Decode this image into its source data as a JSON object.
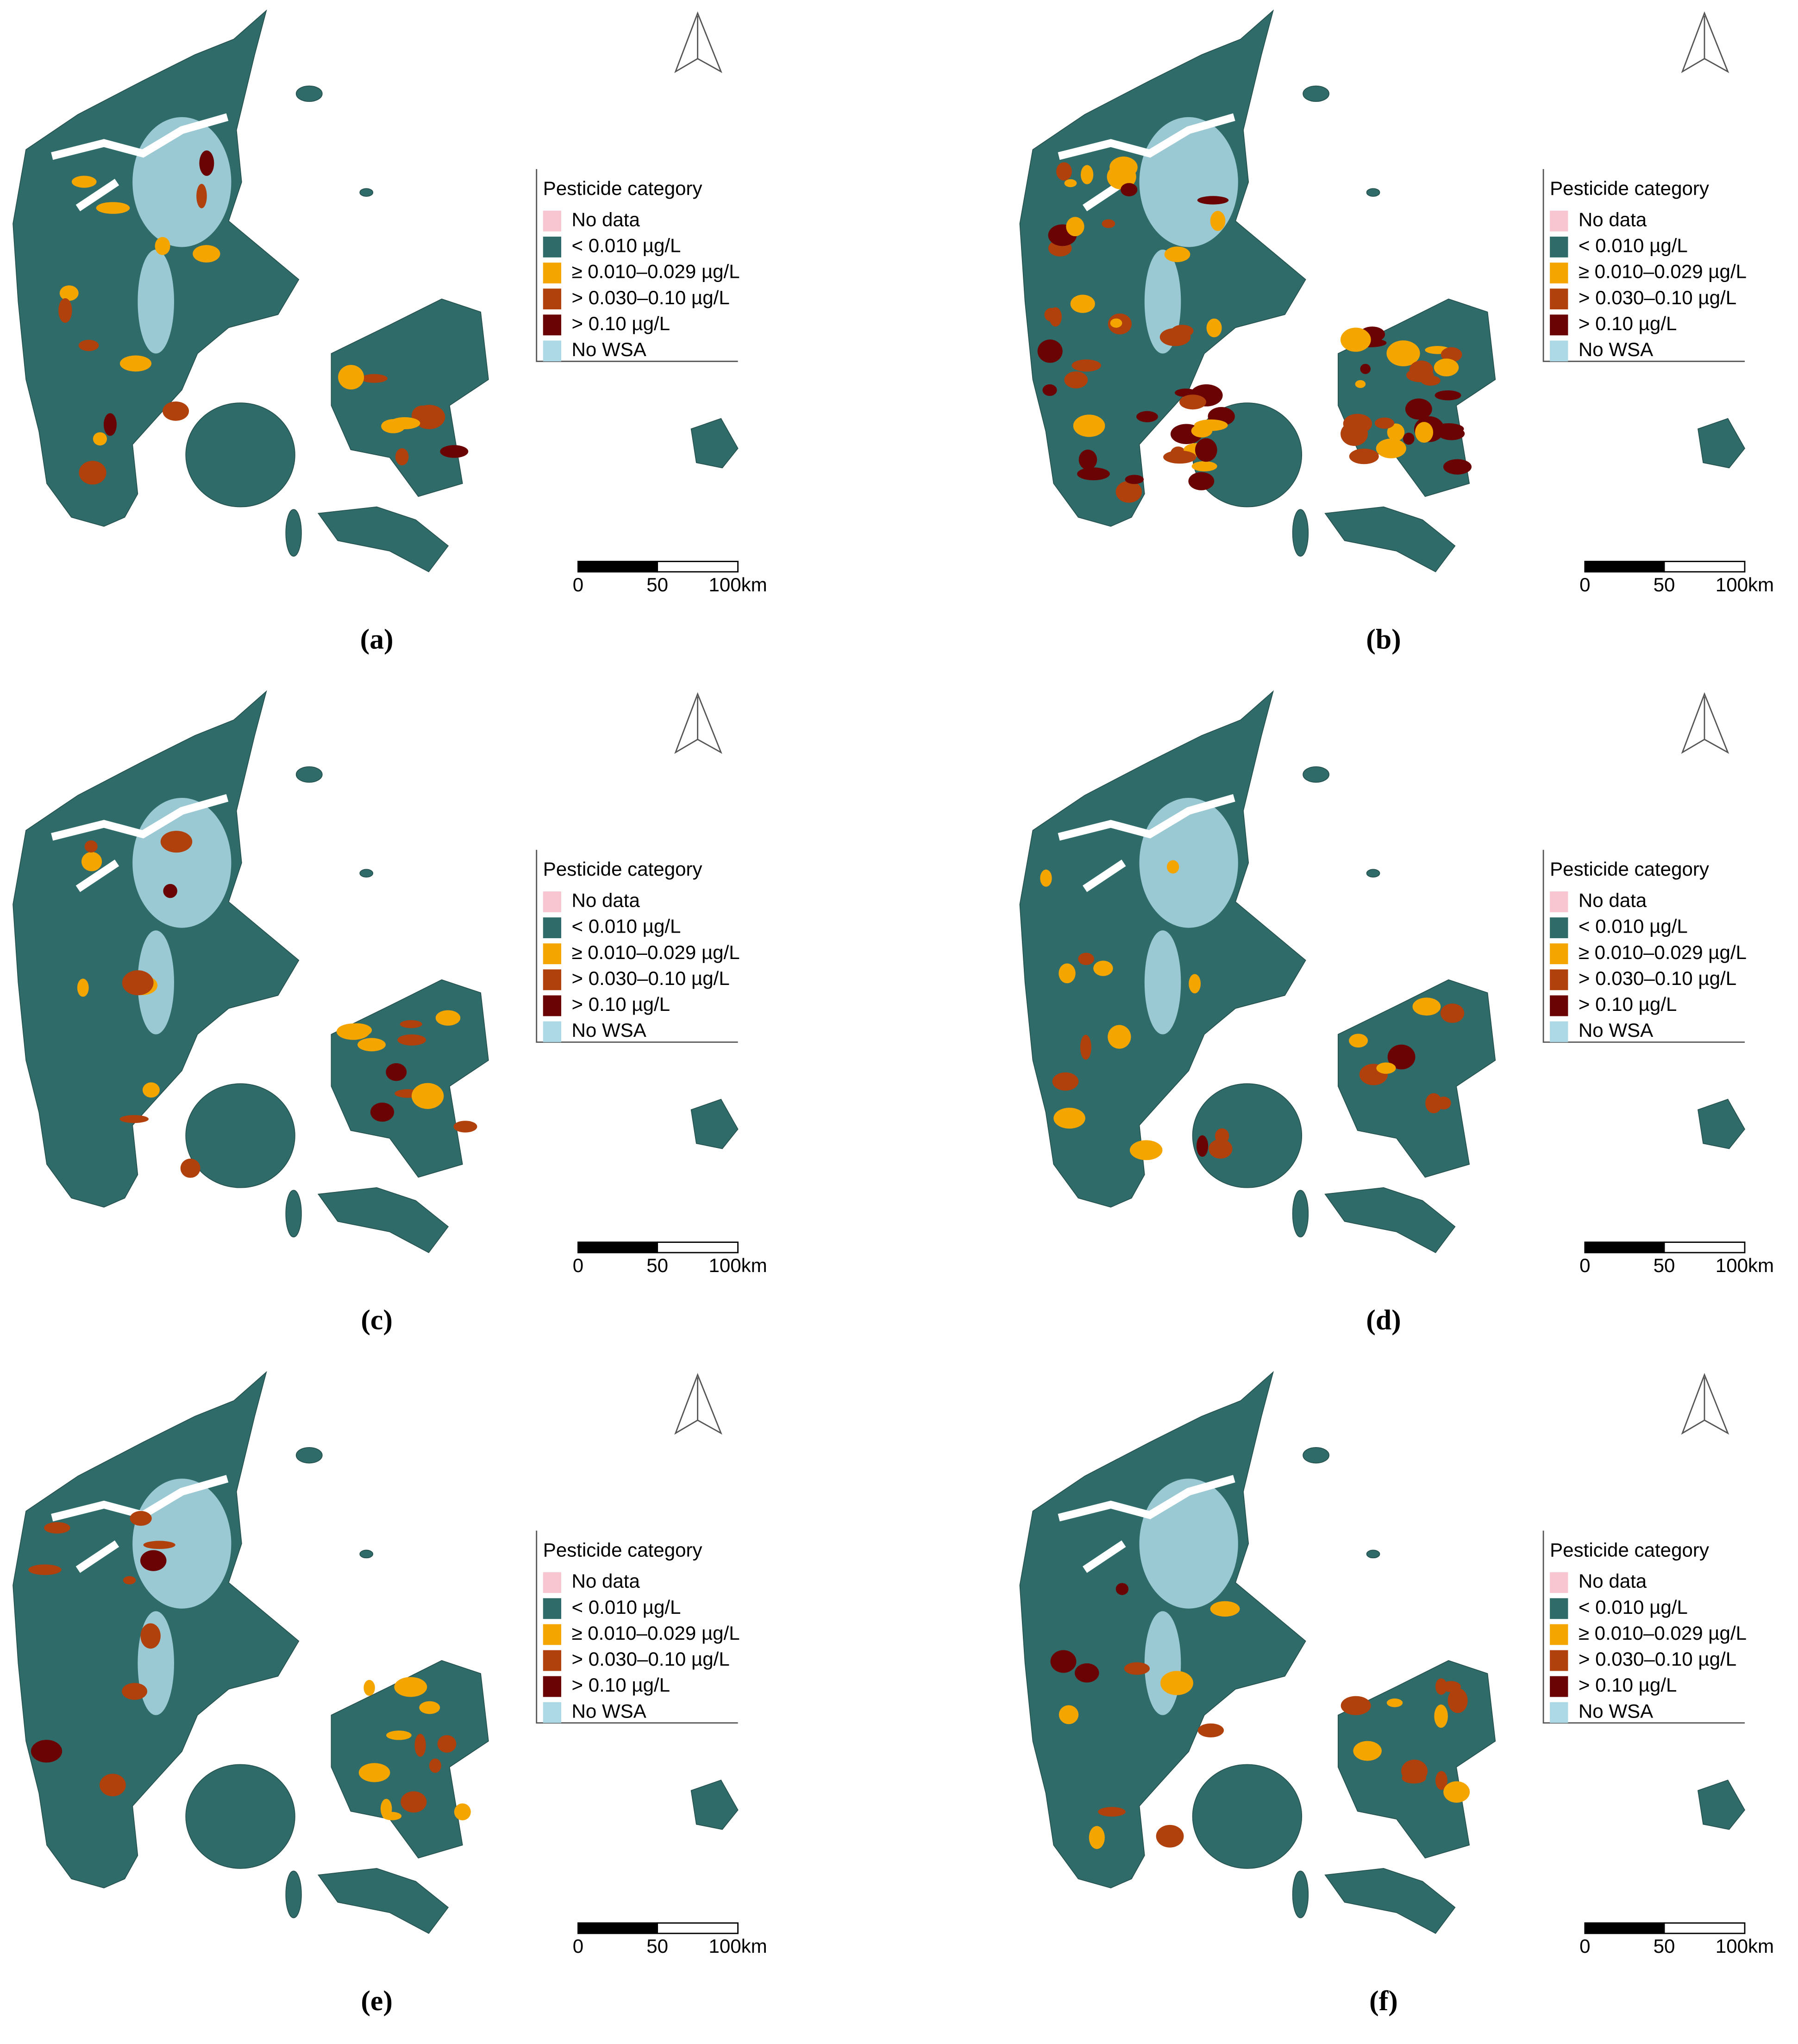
{
  "legend": {
    "title": "Pesticide category",
    "items": [
      {
        "label": "No data",
        "color": "#f7c6d0"
      },
      {
        "label": "< 0.010 µg/L",
        "color": "#2f6b68"
      },
      {
        "label": "≥ 0.010–0.029 µg/L",
        "color": "#f5a500"
      },
      {
        "label": "> 0.030–0.10 µg/L",
        "color": "#b0400c"
      },
      {
        "label": "> 0.10 µg/L",
        "color": "#6a0303"
      },
      {
        "label": "No WSA",
        "color": "#add8e6"
      }
    ]
  },
  "scale_labels": [
    "0",
    "50",
    "100km"
  ],
  "panels": [
    {
      "label": "(a)"
    },
    {
      "label": "(b)"
    },
    {
      "label": "(c)"
    },
    {
      "label": "(d)"
    },
    {
      "label": "(e)"
    },
    {
      "label": "(f)"
    }
  ]
}
